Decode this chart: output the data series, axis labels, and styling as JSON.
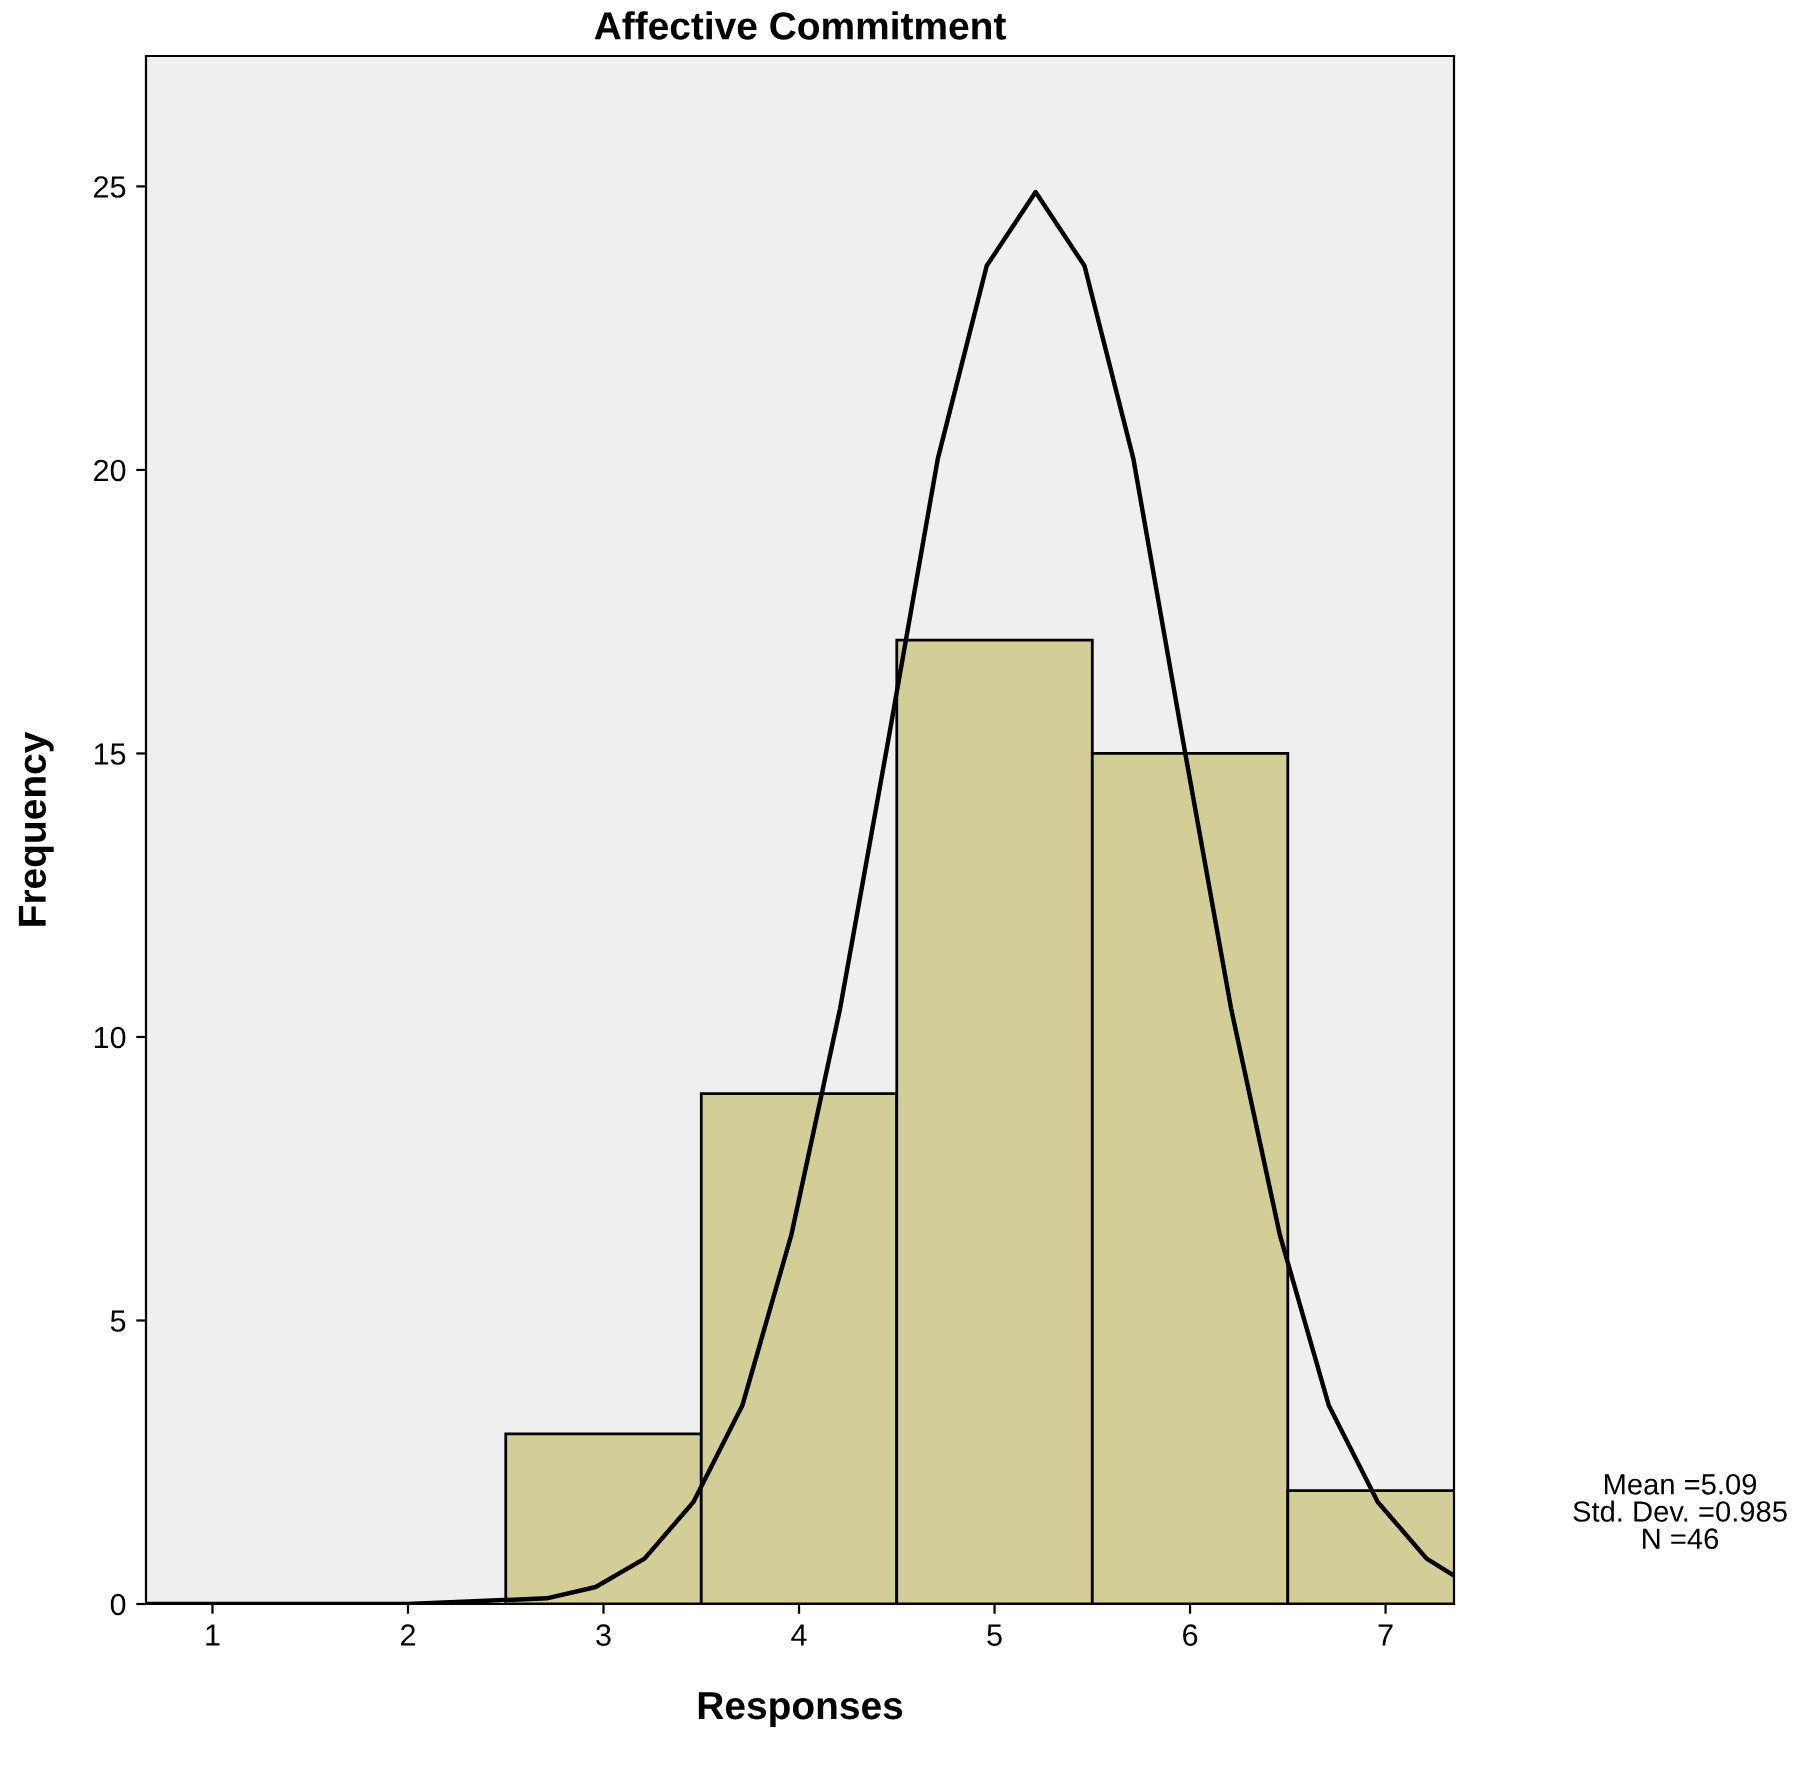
{
  "chart_data": {
    "type": "histogram",
    "title": "Affective Commitment",
    "xlabel": "Responses",
    "ylabel": "Frequency",
    "bins": [
      2.5,
      3.5,
      4.5,
      5.5,
      6.5,
      7.5
    ],
    "values": [
      3,
      9,
      17,
      15,
      2
    ],
    "color": "#d3ce98",
    "series": [
      {
        "type": "line",
        "color": "#000000",
        "x": [
          0.66,
          2.0,
          2.71,
          2.96,
          3.21,
          3.46,
          3.71,
          3.96,
          4.21,
          4.46,
          4.71,
          4.96,
          5.21,
          5.46,
          5.71,
          5.96,
          6.21,
          6.46,
          6.71,
          6.96,
          7.21,
          7.35
        ],
        "values": [
          0,
          0,
          0.1,
          0.3,
          0.8,
          1.8,
          3.5,
          6.5,
          10.5,
          15.3,
          20.2,
          23.6,
          24.9,
          23.6,
          20.2,
          15.3,
          10.5,
          6.5,
          3.5,
          1.8,
          0.8,
          0.5
        ]
      }
    ],
    "xlim": [
      0.66,
      7.35
    ],
    "xticks": [
      1,
      2,
      3,
      4,
      5,
      6,
      7
    ],
    "ylim": [
      0,
      27.3
    ],
    "yticks": [
      0,
      5,
      10,
      15,
      20,
      25
    ],
    "grid": false,
    "annotations": [
      "Mean =5.09\nStd. Dev. =0.985\nN =46"
    ]
  }
}
